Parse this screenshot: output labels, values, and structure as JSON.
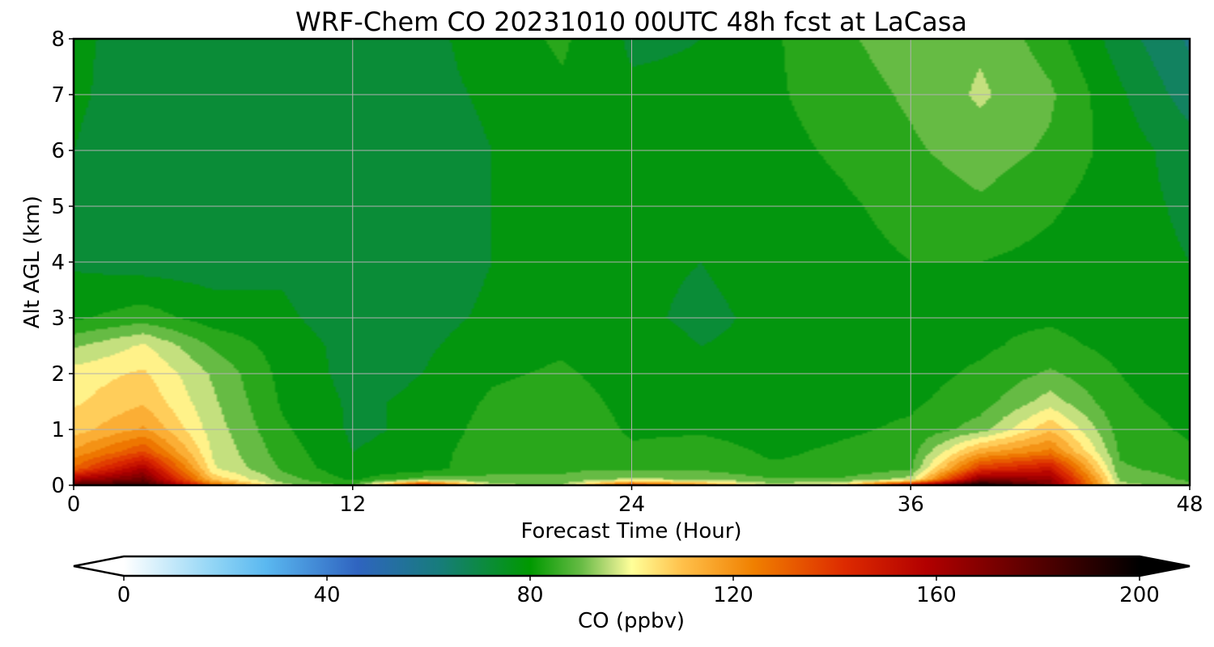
{
  "chart_data": {
    "type": "heatmap",
    "title": "WRF-Chem CO  20231010 00UTC 48h fcst at LaCasa",
    "xlabel": "Forecast Time (Hour)",
    "ylabel": "Alt AGL (km)",
    "xlim": [
      0,
      48
    ],
    "ylim": [
      0,
      8
    ],
    "xticks": [
      0,
      12,
      24,
      36,
      48
    ],
    "yticks": [
      0,
      1,
      2,
      3,
      4,
      5,
      6,
      7,
      8
    ],
    "grid": true,
    "x": [
      0,
      3,
      6,
      9,
      12,
      15,
      18,
      21,
      24,
      27,
      30,
      33,
      36,
      39,
      42,
      45,
      48
    ],
    "y": [
      0,
      0.1,
      0.3,
      0.6,
      1,
      1.5,
      2,
      2.5,
      3,
      4,
      5,
      6,
      7,
      8
    ],
    "z": [
      [
        180,
        190,
        130,
        95,
        85,
        150,
        95,
        92,
        140,
        120,
        96,
        102,
        160,
        200,
        170,
        95,
        90
      ],
      [
        160,
        175,
        110,
        90,
        80,
        90,
        88,
        88,
        95,
        92,
        88,
        88,
        96,
        170,
        165,
        92,
        86
      ],
      [
        130,
        160,
        100,
        86,
        76,
        78,
        86,
        86,
        86,
        86,
        82,
        82,
        86,
        140,
        150,
        88,
        84
      ],
      [
        118,
        135,
        98,
        84,
        75,
        77,
        86,
        86,
        82,
        84,
        80,
        82,
        84,
        115,
        125,
        86,
        82
      ],
      [
        108,
        118,
        96,
        82,
        74,
        76,
        84,
        86,
        80,
        80,
        78,
        80,
        82,
        90,
        110,
        84,
        80
      ],
      [
        104,
        110,
        94,
        80,
        74,
        76,
        82,
        84,
        79,
        78,
        78,
        79,
        80,
        84,
        96,
        82,
        79
      ],
      [
        102,
        106,
        92,
        79,
        73,
        75,
        80,
        82,
        78,
        76,
        77,
        78,
        79,
        82,
        88,
        81,
        78
      ],
      [
        92,
        100,
        86,
        78,
        73,
        74,
        78,
        80,
        77,
        75,
        76,
        78,
        78,
        80,
        83,
        79,
        77
      ],
      [
        80,
        84,
        78,
        76,
        72,
        73,
        76,
        78,
        76,
        74,
        76,
        78,
        79,
        80,
        80,
        78,
        76
      ],
      [
        74,
        72,
        72,
        74,
        70,
        72,
        75,
        77,
        76,
        75,
        77,
        79,
        81,
        81,
        79,
        77,
        75
      ],
      [
        73,
        69,
        70,
        72,
        70,
        71,
        75,
        77,
        76,
        77,
        78,
        80,
        83,
        86,
        82,
        77,
        74
      ],
      [
        75,
        71,
        71,
        72,
        71,
        72,
        75,
        78,
        77,
        77,
        79,
        82,
        86,
        90,
        86,
        78,
        72
      ],
      [
        76,
        72,
        72,
        73,
        72,
        73,
        76,
        80,
        76,
        76,
        80,
        84,
        88,
        94,
        88,
        76,
        66
      ],
      [
        76,
        73,
        72,
        73,
        72,
        73,
        78,
        82,
        74,
        75,
        80,
        86,
        90,
        92,
        84,
        72,
        62
      ]
    ],
    "colorbar": {
      "label": "CO  (ppbv)",
      "min": 0,
      "max": 200,
      "ticks": [
        0,
        40,
        80,
        120,
        160,
        200
      ],
      "extend": "both",
      "under_color": "#ffffff",
      "over_color": "#000000",
      "stops": [
        {
          "v": 0,
          "c": "#ffffff"
        },
        {
          "v": 18,
          "c": "#8fd4f5"
        },
        {
          "v": 28,
          "c": "#5ab8f0"
        },
        {
          "v": 46,
          "c": "#2f64c0"
        },
        {
          "v": 62,
          "c": "#177c7c"
        },
        {
          "v": 80,
          "c": "#009900"
        },
        {
          "v": 90,
          "c": "#66bb44"
        },
        {
          "v": 96,
          "c": "#c4e07e"
        },
        {
          "v": 100,
          "c": "#ffff99"
        },
        {
          "v": 110,
          "c": "#ffc04a"
        },
        {
          "v": 124,
          "c": "#f08000"
        },
        {
          "v": 142,
          "c": "#dd2a00"
        },
        {
          "v": 158,
          "c": "#b20000"
        },
        {
          "v": 176,
          "c": "#660000"
        },
        {
          "v": 200,
          "c": "#000000"
        }
      ]
    }
  }
}
